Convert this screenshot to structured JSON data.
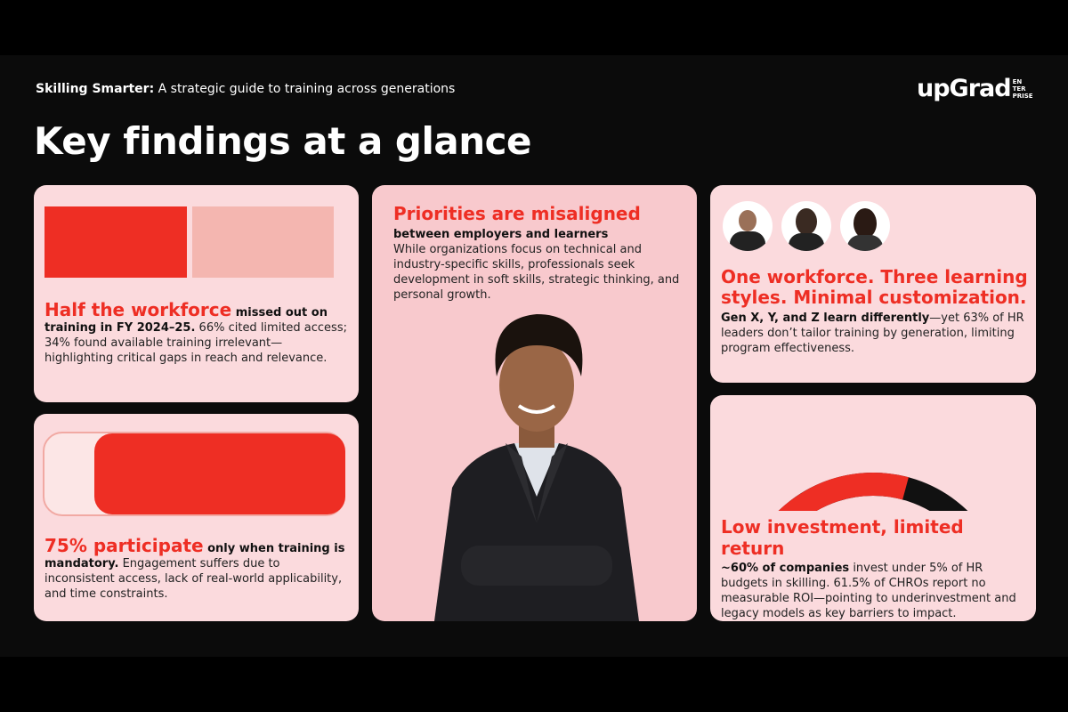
{
  "header": {
    "subtitle_bold": "Skilling Smarter:",
    "subtitle_rest": " A strategic guide to training across generations",
    "title": "Key findings at a glance",
    "logo_text": "upGrad",
    "logo_sub": [
      "EN",
      "TER",
      "PRISE"
    ]
  },
  "colors": {
    "accent": "#ee2e24",
    "light_accent": "#f4b6b0",
    "card": "#fbdadd",
    "card_center": "#f8c9cd",
    "background": "#0b0b0b"
  },
  "card_workforce": {
    "headline": "Half the workforce",
    "bold": " missed out on training in FY 2024–25.",
    "body": " 66% cited limited access; 34% found available training irrelevant—highlighting critical gaps in reach and relevance.",
    "share_missed_percent": 50
  },
  "card_participation": {
    "headline": "75% participate",
    "bold": " only when training is mandatory.",
    "body": " Engagement suffers due to inconsistent access, lack of real-world applicability, and time constraints.",
    "fill_percent": 75
  },
  "card_priorities": {
    "headline": "Priorities are misaligned",
    "bold": "between employers and learners",
    "body": "While organizations focus on technical and industry-specific skills, professionals seek development in soft skills, strategic thinking, and personal growth."
  },
  "card_generations": {
    "headline": "One workforce. Three learning styles. Minimal customization.",
    "bold": "Gen X, Y, and Z learn differently",
    "body": "—yet 63% of HR leaders don’t tailor training by generation, limiting program effectiveness.",
    "avatars": [
      "avatar-man",
      "avatar-woman-1",
      "avatar-woman-2"
    ]
  },
  "card_investment": {
    "headline": "Low investment, limited return",
    "bold": "~60% of companies",
    "body": " invest under 5% of HR budgets in skilling. 61.5% of CHROs report no measurable ROI—pointing to underinvestment and legacy models as key barriers to impact.",
    "gauge_percent": 60
  }
}
